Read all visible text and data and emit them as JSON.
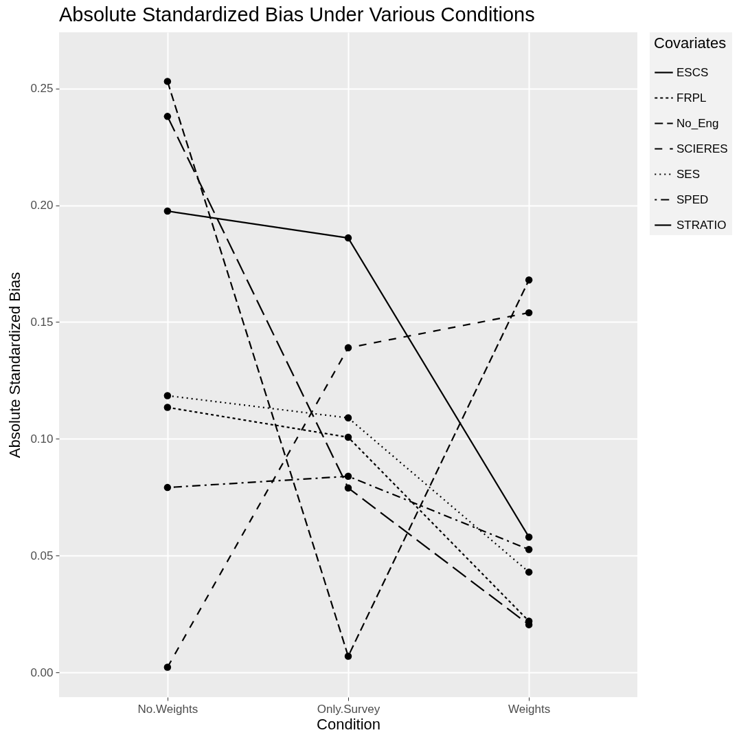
{
  "chart_data": {
    "type": "line",
    "title": "Absolute Standardized Bias Under Various Conditions",
    "xlabel": "Condition",
    "ylabel": "Absolute Standardized Bias",
    "legend_title": "Covariates",
    "categories": [
      "No.Weights",
      "Only.Survey",
      "Weights"
    ],
    "series": [
      {
        "name": "ESCS",
        "color": "#000000",
        "line_style": "solid",
        "values": [
          0.1975,
          0.186,
          0.058
        ]
      },
      {
        "name": "FRPL",
        "color": "#000000",
        "line_style": "dotted",
        "values": [
          0.1135,
          0.1007,
          0.022
        ]
      },
      {
        "name": "No_Eng",
        "color": "#000000",
        "line_style": "dashed",
        "values": [
          0.253,
          0.007,
          0.168
        ]
      },
      {
        "name": "SCIERES",
        "color": "#000000",
        "line_style": "dashed",
        "values": [
          0.0023,
          0.139,
          0.154
        ]
      },
      {
        "name": "SES",
        "color": "#000000",
        "line_style": "dotted",
        "values": [
          0.1185,
          0.109,
          0.043
        ]
      },
      {
        "name": "SPED",
        "color": "#000000",
        "line_style": "dashdot",
        "values": [
          0.0792,
          0.084,
          0.0527
        ]
      },
      {
        "name": "STRATIO",
        "color": "#000000",
        "line_style": "dashed",
        "values": [
          0.238,
          0.079,
          0.0205
        ]
      }
    ],
    "ylim": [
      -0.0105,
      0.274
    ],
    "yticks": [
      {
        "value": 0,
        "label": "0.00"
      },
      {
        "value": 0.05,
        "label": "0.05"
      },
      {
        "value": 0.1,
        "label": "0.10"
      },
      {
        "value": 0.15,
        "label": "0.15"
      },
      {
        "value": 0.2,
        "label": "0.20"
      },
      {
        "value": 0.25,
        "label": "0.25"
      }
    ],
    "grid": true,
    "legend": "right",
    "marker": "circle"
  }
}
